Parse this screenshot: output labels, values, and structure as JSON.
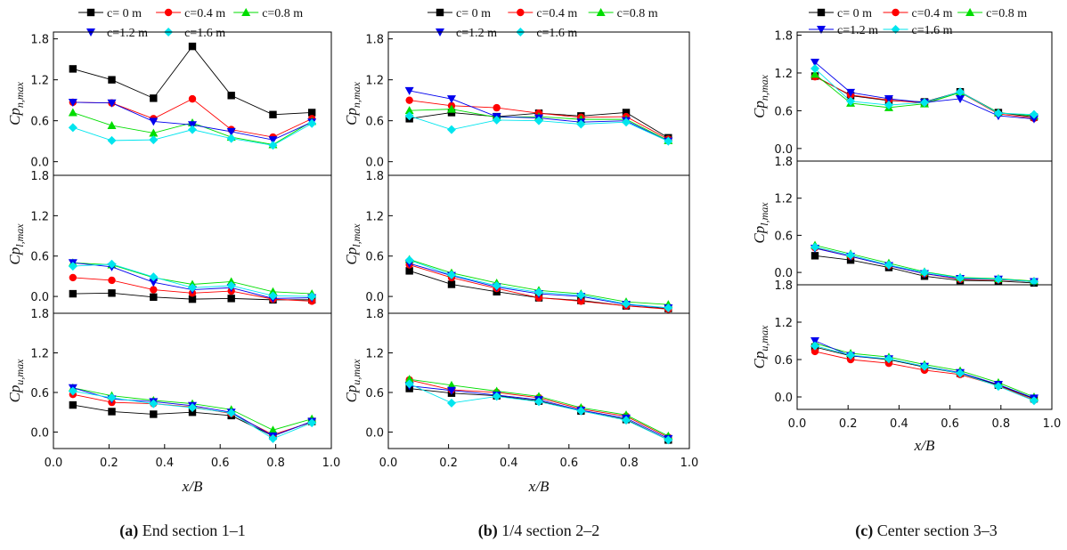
{
  "legend": {
    "entries": [
      {
        "label": "c= 0  m",
        "color": "#000000",
        "marker": "square"
      },
      {
        "label": "c=0.4 m",
        "color": "#ff0000",
        "marker": "circle"
      },
      {
        "label": "c=0.8 m",
        "color": "#00dd00",
        "marker": "triangle-up"
      },
      {
        "label": "c=1.2 m",
        "color": "#0000ee",
        "marker": "triangle-down"
      },
      {
        "label": "c=1.6 m",
        "color": "#00e5ee",
        "marker": "diamond"
      }
    ]
  },
  "captions": [
    {
      "letter": "(a)",
      "text": " End section 1–1"
    },
    {
      "letter": "(b)",
      "text": " 1/4 section 2–2"
    },
    {
      "letter": "(c)",
      "text": " Center section 3–3"
    }
  ],
  "chart_data": [
    {
      "type": "line",
      "panel": "a",
      "xlabel": "x/B",
      "xlim": [
        0.0,
        1.0
      ],
      "x_ticks": [
        "0.0",
        "0.2",
        "0.4",
        "0.6",
        "0.8",
        "1.0"
      ],
      "y_ticks": [
        "0.0",
        "0.6",
        "1.2",
        "1.8"
      ],
      "x": [
        0.07,
        0.21,
        0.36,
        0.5,
        0.64,
        0.79,
        0.93
      ],
      "subplots": [
        {
          "ylabel": "Cp_n,max",
          "ylim": [
            -0.2,
            1.9
          ],
          "series": [
            {
              "name": "c= 0  m",
              "values": [
                1.36,
                1.2,
                0.93,
                1.69,
                0.97,
                0.69,
                0.72
              ]
            },
            {
              "name": "c=0.4 m",
              "values": [
                0.87,
                0.86,
                0.63,
                0.92,
                0.47,
                0.36,
                0.63
              ]
            },
            {
              "name": "c=0.8 m",
              "values": [
                0.72,
                0.53,
                0.42,
                0.57,
                0.36,
                0.25,
                0.59
              ]
            },
            {
              "name": "c=1.2 m",
              "values": [
                0.87,
                0.86,
                0.59,
                0.54,
                0.44,
                0.32,
                0.58
              ]
            },
            {
              "name": "c=1.6 m",
              "values": [
                0.5,
                0.31,
                0.32,
                0.47,
                0.34,
                0.24,
                0.56
              ]
            }
          ]
        },
        {
          "ylabel": "Cp_l,max",
          "ylim": [
            -0.25,
            1.8
          ],
          "series": [
            {
              "name": "c= 0  m",
              "values": [
                0.04,
                0.05,
                -0.01,
                -0.04,
                -0.03,
                -0.05,
                -0.05
              ]
            },
            {
              "name": "c=0.4 m",
              "values": [
                0.28,
                0.24,
                0.1,
                0.05,
                0.08,
                -0.04,
                -0.07
              ]
            },
            {
              "name": "c=0.8 m",
              "values": [
                0.5,
                0.47,
                0.28,
                0.18,
                0.22,
                0.07,
                0.04
              ]
            },
            {
              "name": "c=1.2 m",
              "values": [
                0.5,
                0.44,
                0.21,
                0.1,
                0.13,
                -0.03,
                -0.02
              ]
            },
            {
              "name": "c=1.6 m",
              "values": [
                0.45,
                0.48,
                0.29,
                0.13,
                0.16,
                0.01,
                0.0
              ]
            }
          ]
        },
        {
          "ylabel": "Cp_u,max",
          "ylim": [
            -0.25,
            1.8
          ],
          "series": [
            {
              "name": "c= 0  m",
              "values": [
                0.41,
                0.31,
                0.27,
                0.3,
                0.25,
                -0.06,
                0.16
              ]
            },
            {
              "name": "c=0.4 m",
              "values": [
                0.57,
                0.45,
                0.43,
                0.38,
                0.28,
                -0.04,
                0.15
              ]
            },
            {
              "name": "c=0.8 m",
              "values": [
                0.67,
                0.55,
                0.48,
                0.43,
                0.34,
                0.03,
                0.2
              ]
            },
            {
              "name": "c=1.2 m",
              "values": [
                0.67,
                0.5,
                0.46,
                0.4,
                0.3,
                -0.06,
                0.16
              ]
            },
            {
              "name": "c=1.6 m",
              "values": [
                0.62,
                0.52,
                0.43,
                0.37,
                0.29,
                -0.1,
                0.14
              ]
            }
          ]
        }
      ]
    },
    {
      "type": "line",
      "panel": "b",
      "xlabel": "x/B",
      "xlim": [
        0.0,
        1.0
      ],
      "x_ticks": [
        "0.0",
        "0.2",
        "0.4",
        "0.6",
        "0.8",
        "1.0"
      ],
      "y_ticks": [
        "0.0",
        "0.6",
        "1.2",
        "1.8"
      ],
      "x": [
        0.07,
        0.21,
        0.36,
        0.5,
        0.64,
        0.79,
        0.93
      ],
      "subplots": [
        {
          "ylabel": "Cp_n,max",
          "ylim": [
            -0.2,
            1.9
          ],
          "series": [
            {
              "name": "c= 0  m",
              "values": [
                0.63,
                0.72,
                0.66,
                0.71,
                0.67,
                0.72,
                0.35
              ]
            },
            {
              "name": "c=0.4 m",
              "values": [
                0.9,
                0.82,
                0.79,
                0.71,
                0.65,
                0.66,
                0.33
              ]
            },
            {
              "name": "c=0.8 m",
              "values": [
                0.75,
                0.77,
                0.65,
                0.66,
                0.62,
                0.62,
                0.31
              ]
            },
            {
              "name": "c=1.2 m",
              "values": [
                1.04,
                0.92,
                0.66,
                0.64,
                0.58,
                0.6,
                0.3
              ]
            },
            {
              "name": "c=1.6 m",
              "values": [
                0.67,
                0.47,
                0.61,
                0.6,
                0.55,
                0.58,
                0.3
              ]
            }
          ]
        },
        {
          "ylabel": "Cp_l,max",
          "ylim": [
            -0.25,
            1.8
          ],
          "series": [
            {
              "name": "c= 0  m",
              "values": [
                0.38,
                0.18,
                0.07,
                -0.02,
                -0.06,
                -0.14,
                -0.18
              ]
            },
            {
              "name": "c=0.4 m",
              "values": [
                0.47,
                0.28,
                0.12,
                -0.02,
                -0.07,
                -0.14,
                -0.19
              ]
            },
            {
              "name": "c=0.8 m",
              "values": [
                0.55,
                0.35,
                0.2,
                0.09,
                0.04,
                -0.08,
                -0.12
              ]
            },
            {
              "name": "c=1.2 m",
              "values": [
                0.49,
                0.31,
                0.14,
                0.04,
                0.0,
                -0.12,
                -0.17
              ]
            },
            {
              "name": "c=1.6 m",
              "values": [
                0.54,
                0.32,
                0.16,
                0.06,
                0.02,
                -0.11,
                -0.17
              ]
            }
          ]
        },
        {
          "ylabel": "Cp_u,max",
          "ylim": [
            -0.25,
            1.8
          ],
          "series": [
            {
              "name": "c= 0  m",
              "values": [
                0.66,
                0.59,
                0.55,
                0.47,
                0.32,
                0.19,
                -0.12
              ]
            },
            {
              "name": "c=0.4 m",
              "values": [
                0.79,
                0.64,
                0.6,
                0.52,
                0.35,
                0.24,
                -0.08
              ]
            },
            {
              "name": "c=0.8 m",
              "values": [
                0.8,
                0.71,
                0.62,
                0.54,
                0.37,
                0.26,
                -0.06
              ]
            },
            {
              "name": "c=1.2 m",
              "values": [
                0.7,
                0.63,
                0.56,
                0.49,
                0.33,
                0.21,
                -0.1
              ]
            },
            {
              "name": "c=1.6 m",
              "values": [
                0.73,
                0.44,
                0.54,
                0.46,
                0.32,
                0.18,
                -0.12
              ]
            }
          ]
        }
      ]
    },
    {
      "type": "line",
      "panel": "c",
      "xlabel": "x/B",
      "xlim": [
        0.0,
        1.0
      ],
      "x_ticks": [
        "0.0",
        "0.2",
        "0.4",
        "0.6",
        "0.8",
        "1.0"
      ],
      "y_ticks": [
        "0.0",
        "0.6",
        "1.2",
        "1.8"
      ],
      "x": [
        0.07,
        0.21,
        0.36,
        0.5,
        0.64,
        0.79,
        0.93
      ],
      "subplots": [
        {
          "ylabel": "Cp_n,max",
          "ylim": [
            -0.2,
            1.85
          ],
          "series": [
            {
              "name": "c= 0  m",
              "values": [
                1.15,
                0.84,
                0.76,
                0.74,
                0.9,
                0.57,
                0.5
              ]
            },
            {
              "name": "c=0.4 m",
              "values": [
                1.14,
                0.85,
                0.77,
                0.72,
                0.89,
                0.55,
                0.48
              ]
            },
            {
              "name": "c=0.8 m",
              "values": [
                1.18,
                0.72,
                0.65,
                0.71,
                0.89,
                0.57,
                0.52
              ]
            },
            {
              "name": "c=1.2 m",
              "values": [
                1.37,
                0.89,
                0.79,
                0.73,
                0.79,
                0.52,
                0.47
              ]
            },
            {
              "name": "c=1.6 m",
              "values": [
                1.27,
                0.75,
                0.69,
                0.73,
                0.9,
                0.56,
                0.54
              ]
            }
          ]
        },
        {
          "ylabel": "Cp_l,max",
          "ylim": [
            -0.2,
            1.8
          ],
          "series": [
            {
              "name": "c= 0  m",
              "values": [
                0.27,
                0.2,
                0.08,
                -0.06,
                -0.13,
                -0.14,
                -0.17
              ]
            },
            {
              "name": "c=0.4 m",
              "values": [
                0.4,
                0.26,
                0.11,
                -0.02,
                -0.11,
                -0.12,
                -0.15
              ]
            },
            {
              "name": "c=0.8 m",
              "values": [
                0.44,
                0.3,
                0.15,
                0.01,
                -0.08,
                -0.1,
                -0.14
              ]
            },
            {
              "name": "c=1.2 m",
              "values": [
                0.39,
                0.26,
                0.11,
                -0.02,
                -0.1,
                -0.11,
                -0.15
              ]
            },
            {
              "name": "c=1.6 m",
              "values": [
                0.41,
                0.28,
                0.12,
                0.0,
                -0.09,
                -0.11,
                -0.15
              ]
            }
          ]
        },
        {
          "ylabel": "Cp_u,max",
          "ylim": [
            -0.2,
            1.8
          ],
          "series": [
            {
              "name": "c= 0  m",
              "values": [
                0.8,
                0.66,
                0.6,
                0.48,
                0.38,
                0.19,
                -0.03
              ]
            },
            {
              "name": "c=0.4 m",
              "values": [
                0.73,
                0.6,
                0.54,
                0.43,
                0.36,
                0.18,
                -0.05
              ]
            },
            {
              "name": "c=0.8 m",
              "values": [
                0.86,
                0.7,
                0.64,
                0.52,
                0.42,
                0.23,
                0.0
              ]
            },
            {
              "name": "c=1.2 m",
              "values": [
                0.9,
                0.66,
                0.61,
                0.49,
                0.39,
                0.2,
                -0.02
              ]
            },
            {
              "name": "c=1.6 m",
              "values": [
                0.82,
                0.67,
                0.61,
                0.49,
                0.38,
                0.17,
                -0.06
              ]
            }
          ]
        }
      ]
    }
  ]
}
